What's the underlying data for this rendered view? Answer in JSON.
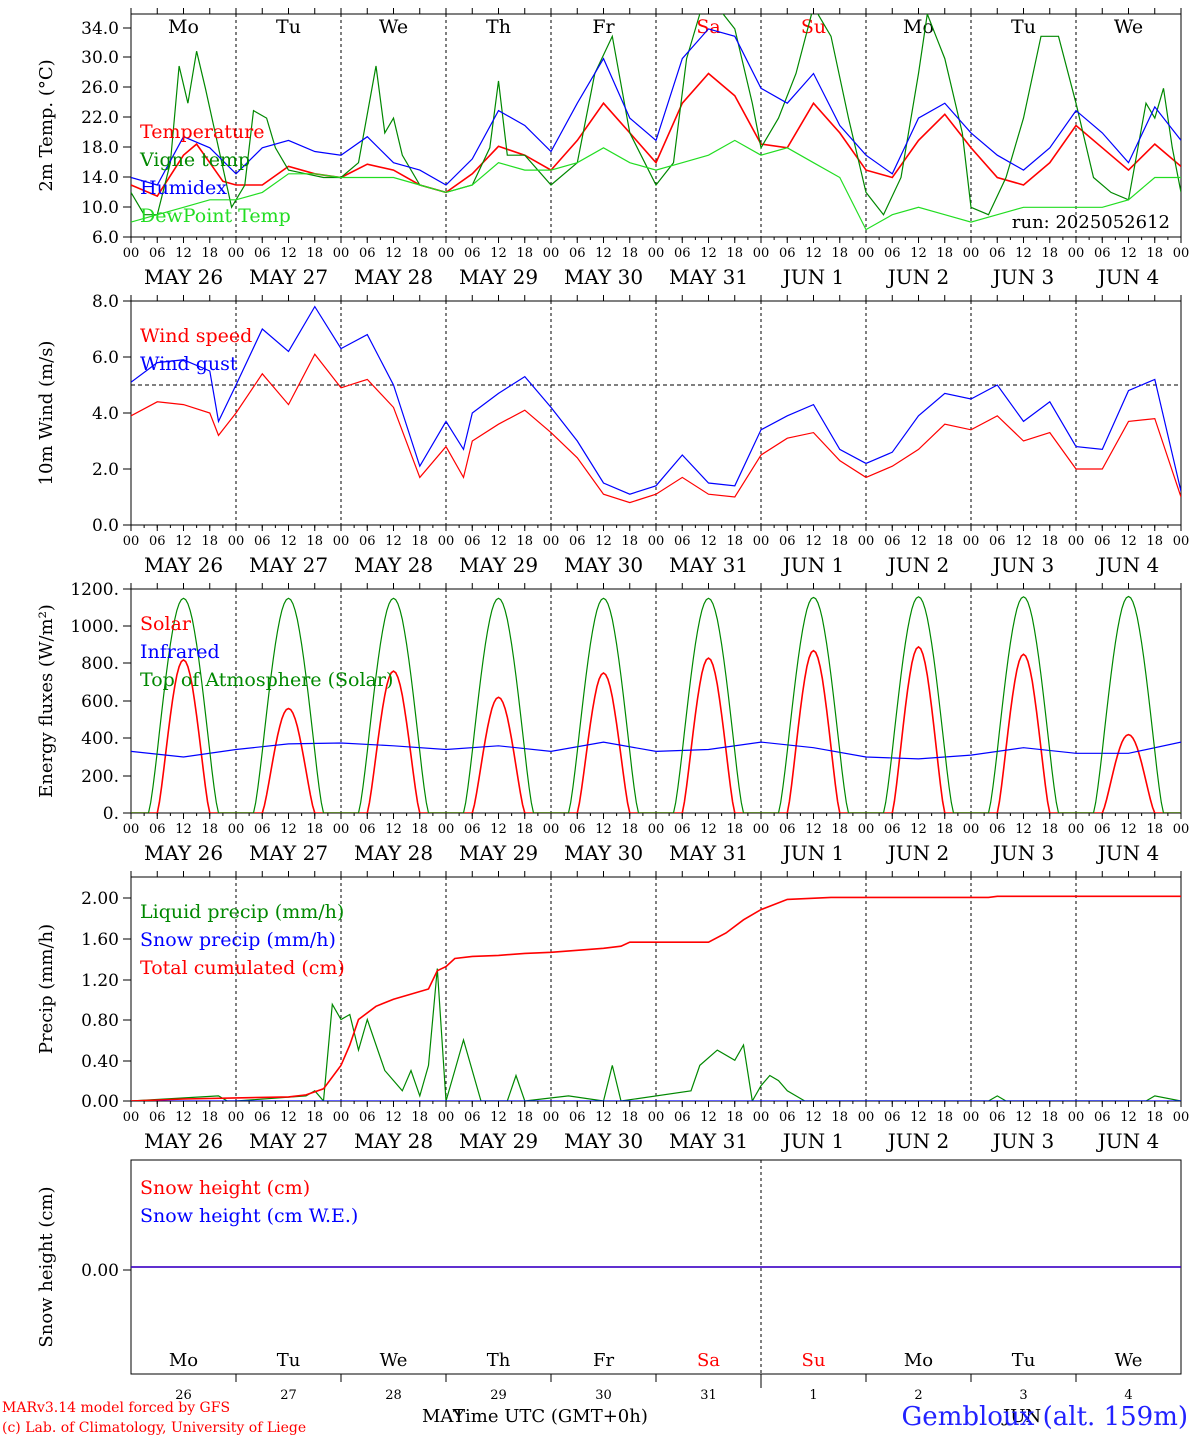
{
  "colors": {
    "red": "#ff0000",
    "green": "#008800",
    "blue": "#0000ff",
    "lightgreen": "#22dd22",
    "weekend": "#ff0000",
    "station": "#2222ff"
  },
  "run_label": "run: 2025052612",
  "station": "Gembloux (alt. 159m)",
  "credits": [
    "MARv3.14 model forced by GFS",
    "(c) Lab. of Climatology, University of Liege"
  ],
  "xaxis_title": "Time UTC (GMT+0h)",
  "month_labels": {
    "may": "MAY",
    "jun": "JUN"
  },
  "day_names": [
    "Mo",
    "Tu",
    "We",
    "Th",
    "Fr",
    "Sa",
    "Su",
    "Mo",
    "Tu",
    "We"
  ],
  "day_name_colors": [
    "black",
    "black",
    "black",
    "black",
    "black",
    "red",
    "red",
    "black",
    "black",
    "black"
  ],
  "date_labels": [
    "MAY 26",
    "MAY 27",
    "MAY 28",
    "MAY 29",
    "MAY 30",
    "MAY 31",
    "JUN  1",
    "JUN  2",
    "JUN  3",
    "JUN  4"
  ],
  "day_numbers": [
    "26",
    "27",
    "28",
    "29",
    "30",
    "31",
    "1",
    "2",
    "3",
    "4"
  ],
  "hour_ticks": [
    "00",
    "06",
    "12",
    "18"
  ],
  "chart_data": [
    {
      "type": "line",
      "ylabel": "2m Temp. (°C)",
      "ylim": [
        6,
        36
      ],
      "yticks": [
        "6.0",
        "10.0",
        "14.0",
        "18.0",
        "22.0",
        "26.0",
        "30.0",
        "34.0"
      ],
      "x_unit": "hours since 2025-05-26 00 UTC",
      "series": [
        {
          "name": "Temperature",
          "color": "red",
          "x": [
            0,
            6,
            12,
            15,
            18,
            21,
            24,
            30,
            36,
            42,
            48,
            54,
            60,
            66,
            72,
            78,
            84,
            90,
            96,
            102,
            108,
            114,
            120,
            126,
            132,
            138,
            144,
            150,
            156,
            162,
            168,
            174,
            180,
            186,
            192,
            198,
            204,
            210,
            216,
            222,
            228,
            234,
            240
          ],
          "y": [
            13,
            11.5,
            17,
            18.5,
            16,
            13.5,
            13,
            13,
            15.5,
            14.5,
            14,
            15.8,
            15,
            13,
            12,
            14.5,
            18.2,
            17,
            15,
            19,
            24,
            20,
            16,
            24,
            28,
            25,
            18.5,
            18,
            24,
            20,
            15,
            14,
            19,
            22.5,
            18,
            14,
            13,
            16,
            21,
            18,
            15,
            18.5,
            15.5
          ]
        },
        {
          "name": "Vigne temp",
          "color": "green",
          "x": [
            0,
            3,
            6,
            9,
            11,
            13,
            15,
            17,
            20,
            23,
            26,
            28,
            31,
            33,
            36,
            40,
            44,
            48,
            52,
            56,
            58,
            60,
            62,
            66,
            72,
            78,
            82,
            84,
            86,
            90,
            96,
            102,
            106,
            110,
            114,
            120,
            124,
            127,
            130,
            134,
            138,
            142,
            144,
            148,
            152,
            156,
            160,
            164,
            168,
            172,
            176,
            180,
            182,
            184,
            186,
            190,
            192,
            196,
            200,
            204,
            208,
            212,
            216,
            220,
            224,
            228,
            232,
            234,
            236,
            238,
            240
          ],
          "y": [
            12,
            9,
            9,
            16,
            29,
            24,
            31,
            26,
            18,
            10,
            13,
            23,
            22,
            18,
            15,
            14.5,
            14,
            14,
            16,
            29,
            20,
            22,
            17,
            13,
            12,
            13,
            18,
            27,
            17,
            17,
            13,
            16,
            28,
            33,
            20,
            13,
            16,
            30,
            36,
            37,
            34,
            24,
            18,
            22,
            28,
            37,
            33,
            22,
            12,
            9,
            14,
            28,
            36,
            33,
            30,
            20,
            10,
            9,
            14,
            22,
            33,
            33,
            24,
            14,
            12,
            11,
            24,
            22,
            26,
            18,
            12
          ]
        },
        {
          "name": "Humidex",
          "color": "blue",
          "x": [
            0,
            6,
            12,
            18,
            24,
            30,
            36,
            42,
            48,
            54,
            60,
            66,
            72,
            78,
            84,
            90,
            96,
            102,
            108,
            114,
            120,
            126,
            132,
            138,
            144,
            150,
            156,
            162,
            168,
            174,
            180,
            186,
            192,
            198,
            204,
            210,
            216,
            222,
            228,
            234,
            240
          ],
          "y": [
            14,
            13,
            19.5,
            18,
            14.5,
            18,
            19,
            17.5,
            17,
            19.5,
            16,
            15,
            13,
            16.5,
            23,
            21,
            17.5,
            24,
            30,
            22,
            19,
            30,
            34,
            33,
            26,
            24,
            28,
            21,
            17,
            14.5,
            22,
            24,
            20,
            17,
            15,
            18,
            23,
            20,
            16,
            23.5,
            19
          ]
        },
        {
          "name": "DewPoint Temp",
          "color": "lightgreen",
          "x": [
            0,
            6,
            12,
            18,
            24,
            30,
            36,
            42,
            48,
            54,
            60,
            66,
            72,
            78,
            84,
            90,
            96,
            102,
            108,
            114,
            120,
            126,
            132,
            138,
            144,
            150,
            156,
            162,
            168,
            174,
            180,
            186,
            192,
            198,
            204,
            210,
            216,
            222,
            228,
            234,
            240
          ],
          "y": [
            8,
            9,
            10,
            11,
            11,
            12,
            14.5,
            14.5,
            14,
            14,
            14,
            13,
            12,
            13,
            16,
            15,
            15,
            16,
            18,
            16,
            15,
            16,
            17,
            19,
            17,
            18,
            16,
            14,
            7,
            9,
            10,
            9,
            8,
            9,
            10,
            10,
            10,
            10,
            11,
            14,
            14
          ]
        }
      ]
    },
    {
      "type": "line",
      "ylabel": "10m Wind (m/s)",
      "ylim": [
        0,
        8
      ],
      "yticks": [
        "0.0",
        "2.0",
        "4.0",
        "6.0",
        "8.0"
      ],
      "reference_line": 5,
      "x_unit": "hours since 2025-05-26 00 UTC",
      "series": [
        {
          "name": "Wind speed",
          "color": "red",
          "x": [
            0,
            6,
            12,
            18,
            20,
            24,
            30,
            36,
            42,
            48,
            54,
            60,
            66,
            72,
            76,
            78,
            84,
            90,
            96,
            102,
            108,
            114,
            120,
            126,
            132,
            138,
            144,
            150,
            156,
            162,
            168,
            174,
            180,
            186,
            192,
            198,
            204,
            210,
            216,
            222,
            228,
            234,
            240
          ],
          "y": [
            3.9,
            4.4,
            4.3,
            4.0,
            3.2,
            4.0,
            5.4,
            4.3,
            6.1,
            4.9,
            5.2,
            4.2,
            1.7,
            2.8,
            1.7,
            3.0,
            3.6,
            4.1,
            3.3,
            2.4,
            1.1,
            0.8,
            1.1,
            1.7,
            1.1,
            1.0,
            2.5,
            3.1,
            3.3,
            2.3,
            1.7,
            2.1,
            2.7,
            3.6,
            3.4,
            3.9,
            3.0,
            3.3,
            2.0,
            2.0,
            3.7,
            3.8,
            1.0
          ]
        },
        {
          "name": "Wind gust",
          "color": "blue",
          "x": [
            0,
            6,
            12,
            18,
            20,
            24,
            30,
            36,
            42,
            48,
            54,
            60,
            66,
            72,
            76,
            78,
            84,
            90,
            96,
            102,
            108,
            114,
            120,
            126,
            132,
            138,
            144,
            150,
            156,
            162,
            168,
            174,
            180,
            186,
            192,
            198,
            204,
            210,
            216,
            222,
            228,
            234,
            240
          ],
          "y": [
            5.1,
            5.8,
            5.9,
            5.5,
            3.7,
            5.0,
            7.0,
            6.2,
            7.8,
            6.3,
            6.8,
            5.0,
            2.1,
            3.7,
            2.7,
            4.0,
            4.7,
            5.3,
            4.2,
            3.0,
            1.5,
            1.1,
            1.4,
            2.5,
            1.5,
            1.4,
            3.4,
            3.9,
            4.3,
            2.7,
            2.2,
            2.6,
            3.9,
            4.7,
            4.5,
            5.0,
            3.7,
            4.4,
            2.8,
            2.7,
            4.8,
            5.2,
            1.2
          ]
        }
      ]
    },
    {
      "type": "line",
      "ylabel": "Energy fluxes (W/m²)",
      "ylim": [
        0,
        1200
      ],
      "yticks": [
        "0.",
        "200.",
        "400.",
        "600.",
        "800.",
        "1000.",
        "1200."
      ],
      "x_unit": "hours since 2025-05-26 00 UTC",
      "series": [
        {
          "name": "Solar",
          "color": "red",
          "day_peaks": [
            820,
            560,
            760,
            620,
            750,
            830,
            870,
            890,
            850,
            420
          ]
        },
        {
          "name": "Infrared",
          "color": "blue",
          "x": [
            0,
            12,
            24,
            36,
            48,
            60,
            72,
            84,
            96,
            108,
            120,
            132,
            144,
            156,
            168,
            180,
            192,
            204,
            216,
            228,
            240
          ],
          "y": [
            330,
            300,
            340,
            370,
            375,
            360,
            340,
            360,
            330,
            380,
            330,
            340,
            380,
            350,
            300,
            290,
            310,
            350,
            320,
            320,
            380
          ]
        },
        {
          "name": "Top of Atmosphere (Solar)",
          "color": "green",
          "day_peaks": [
            1150,
            1150,
            1150,
            1150,
            1150,
            1150,
            1155,
            1158,
            1158,
            1160
          ]
        }
      ]
    },
    {
      "type": "line",
      "ylabel": "Precip (mm/h)",
      "ylim": [
        0,
        2.2
      ],
      "yticks": [
        "0.00",
        "0.40",
        "0.80",
        "1.20",
        "1.60",
        "2.00"
      ],
      "x_unit": "hours since 2025-05-26 00 UTC",
      "series": [
        {
          "name": "Liquid precip (mm/h)",
          "color": "green",
          "x": [
            0,
            20,
            22,
            24,
            40,
            42,
            44,
            46,
            48,
            50,
            52,
            54,
            58,
            62,
            64,
            66,
            68,
            70,
            72,
            74,
            76,
            80,
            86,
            88,
            90,
            100,
            108,
            110,
            112,
            128,
            130,
            134,
            138,
            140,
            142,
            144,
            146,
            148,
            150,
            152,
            154,
            160,
            196,
            198,
            200,
            232,
            234,
            240
          ],
          "y": [
            0,
            0.05,
            0,
            0,
            0.05,
            0.1,
            0,
            0.95,
            0.8,
            0.85,
            0.5,
            0.8,
            0.3,
            0.1,
            0.3,
            0.05,
            0.35,
            1.3,
            0,
            0.3,
            0.6,
            0,
            0,
            0.25,
            0,
            0.05,
            0,
            0.35,
            0,
            0.1,
            0.35,
            0.5,
            0.4,
            0.55,
            0,
            0.15,
            0.25,
            0.2,
            0.1,
            0.05,
            0,
            0,
            0,
            0.05,
            0,
            0,
            0.05,
            0
          ]
        },
        {
          "name": "Snow precip (mm/h)",
          "color": "blue",
          "x": [
            0,
            240
          ],
          "y": [
            0,
            0
          ]
        },
        {
          "name": "Total cumulated (cm)",
          "color": "red",
          "x": [
            0,
            12,
            24,
            36,
            40,
            44,
            48,
            50,
            52,
            56,
            60,
            64,
            68,
            70,
            72,
            74,
            78,
            84,
            90,
            96,
            102,
            108,
            112,
            114,
            120,
            126,
            132,
            136,
            140,
            144,
            150,
            160,
            196,
            198,
            240
          ],
          "y": [
            0,
            0.02,
            0.03,
            0.04,
            0.06,
            0.12,
            0.35,
            0.55,
            0.8,
            0.93,
            1.0,
            1.05,
            1.1,
            1.28,
            1.32,
            1.4,
            1.42,
            1.43,
            1.45,
            1.46,
            1.48,
            1.5,
            1.52,
            1.56,
            1.56,
            1.56,
            1.56,
            1.65,
            1.78,
            1.88,
            1.98,
            2.0,
            2.0,
            2.01,
            2.01
          ]
        }
      ]
    },
    {
      "type": "line",
      "ylabel": "Snow height (cm)",
      "ylim": [
        -1,
        1
      ],
      "yticks": [
        "0.00"
      ],
      "x_unit": "hours since 2025-05-26 00 UTC",
      "series": [
        {
          "name": "Snow height (cm)",
          "color": "red",
          "x": [
            0,
            240
          ],
          "y": [
            0,
            0
          ]
        },
        {
          "name": "Snow height (cm W.E.)",
          "color": "blue",
          "x": [
            0,
            240
          ],
          "y": [
            0,
            0
          ]
        }
      ]
    }
  ]
}
